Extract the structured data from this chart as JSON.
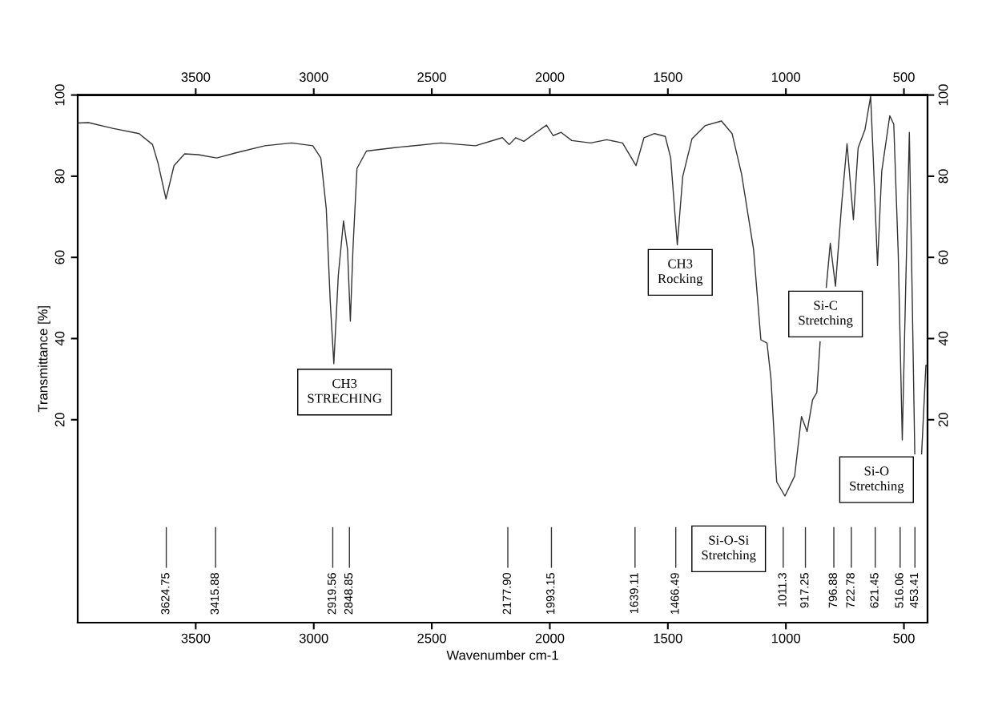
{
  "chart_data": {
    "type": "line",
    "xlabel": "Wavenumber cm-1",
    "ylabel": "Transmittance [%]",
    "x": [
      3999,
      3954,
      3852,
      3740,
      3683,
      3660,
      3626,
      3592,
      3547,
      3490,
      3411,
      3320,
      3207,
      3094,
      3004,
      2970,
      2947,
      2930,
      2915,
      2896,
      2874,
      2857,
      2845,
      2834,
      2817,
      2777,
      2664,
      2630,
      2461,
      2315,
      2201,
      2172,
      2144,
      2110,
      2065,
      2014,
      1986,
      1952,
      1907,
      1827,
      1759,
      1692,
      1635,
      1601,
      1556,
      1511,
      1488,
      1460,
      1437,
      1398,
      1341,
      1273,
      1228,
      1188,
      1137,
      1106,
      1080,
      1063,
      1039,
      1004,
      963,
      934,
      910,
      887,
      869,
      855,
      842,
      829,
      812,
      790,
      764,
      741,
      714,
      694,
      665,
      641,
      630,
      612,
      594,
      560,
      543,
      524,
      507,
      492,
      477,
      466,
      454,
      440,
      425,
      407,
      400
    ],
    "series": [
      {
        "color": "#333333",
        "values": [
          93.1,
          93.2,
          91.8,
          90.5,
          87.8,
          83.3,
          74.4,
          82.6,
          85.5,
          85.3,
          84.5,
          85.9,
          87.5,
          88.2,
          87.5,
          84.5,
          72,
          48.9,
          33.8,
          55.6,
          69,
          62,
          44.3,
          62,
          81.9,
          86.2,
          87,
          87.2,
          88.2,
          87.5,
          89.5,
          87.8,
          89.5,
          88.6,
          90.5,
          92.6,
          90,
          90.8,
          88.8,
          88.2,
          89,
          88.2,
          82.6,
          89.5,
          90.5,
          89.8,
          84.5,
          63.1,
          79.9,
          89.2,
          92.5,
          93.6,
          90.5,
          80.6,
          62,
          39.7,
          38.9,
          30,
          4.7,
          1.2,
          6.1,
          20.8,
          17.1,
          24.9,
          26.7,
          39.2,
          null,
          52.6,
          63.5,
          52.9,
          73,
          88,
          69.3,
          87,
          91.5,
          99.7,
          84.6,
          58,
          81.2,
          94.9,
          92.8,
          60.7,
          15,
          53.9,
          90.8,
          54,
          11.6,
          null,
          11.6,
          33.4,
          33.4
        ]
      }
    ],
    "xlim": [
      4000,
      400
    ],
    "xticks": [
      3500,
      3000,
      2500,
      2000,
      1500,
      1000,
      500
    ],
    "x2lim": [
      4000,
      400
    ],
    "x2ticks": [
      3500,
      3000,
      2500,
      2000,
      1500,
      1000,
      500
    ],
    "ylim": [
      -30,
      100
    ],
    "yticks": [
      20,
      40,
      60,
      80,
      100
    ],
    "y2lim": [
      -30,
      100
    ],
    "y2ticks": [
      20,
      40,
      60,
      80,
      100
    ],
    "grid": false,
    "legend": false,
    "marker": "none",
    "line_style": "solid",
    "annotations": [
      {
        "text": "3624.75",
        "x": 3624.75
      },
      {
        "text": "3415.88",
        "x": 3415.88
      },
      {
        "text": "2919.56",
        "x": 2919.56
      },
      {
        "text": "2848.85",
        "x": 2848.85
      },
      {
        "text": "2177.90",
        "x": 2177.9
      },
      {
        "text": "1993.15",
        "x": 1993.15
      },
      {
        "text": "1639.11",
        "x": 1639.11
      },
      {
        "text": "1466.49",
        "x": 1466.49
      },
      {
        "text": "1011.3",
        "x": 1011.3
      },
      {
        "text": "917.25",
        "x": 917.25
      },
      {
        "text": "796.88",
        "x": 796.88
      },
      {
        "text": "722.78",
        "x": 722.78
      },
      {
        "text": "621.45",
        "x": 621.45
      },
      {
        "text": "516.06",
        "x": 516.06
      },
      {
        "text": "453.41",
        "x": 453.41
      },
      "CH3\nSTRECHING",
      "CH3\nRocking",
      "Si-C\nStretching",
      "Si-O\nStretching",
      "Si-O-Si\nStretching"
    ]
  }
}
